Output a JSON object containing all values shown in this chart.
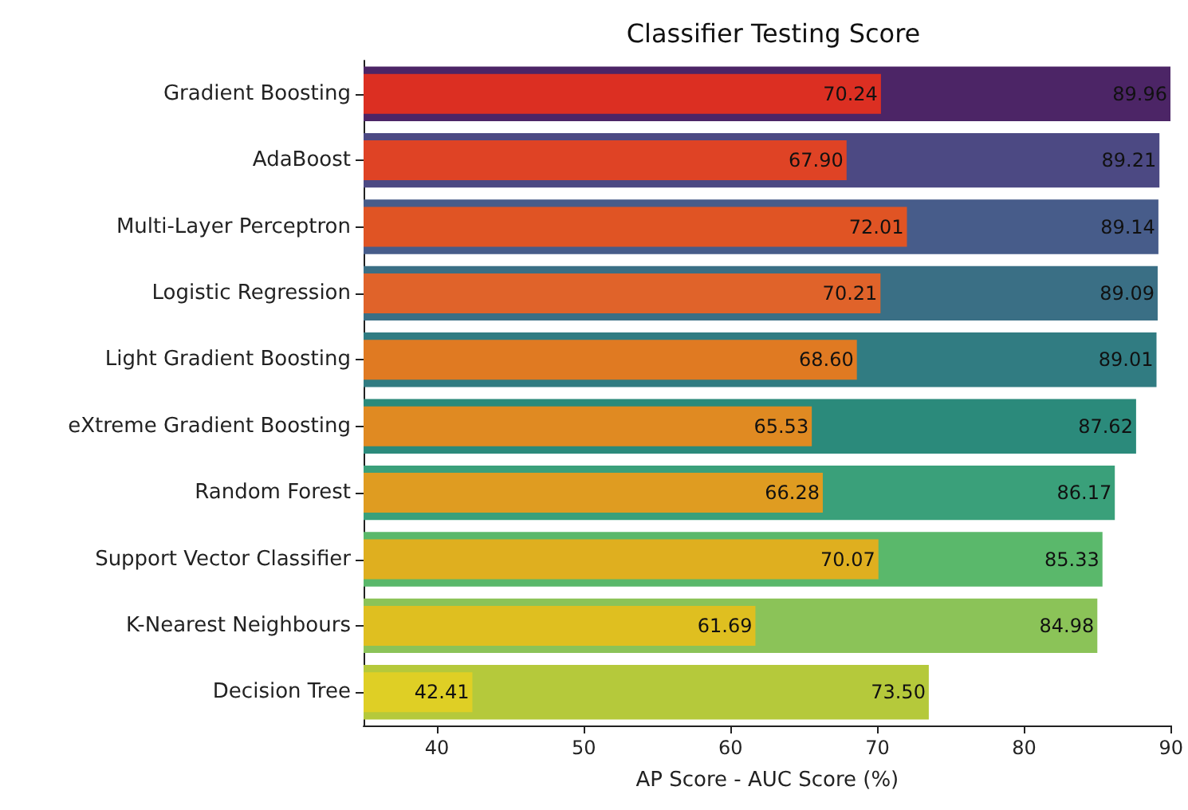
{
  "chart_data": {
    "type": "bar",
    "orientation": "horizontal",
    "title": "Classifier Testing Score",
    "xlabel": "AP Score - AUC Score (%)",
    "categories": [
      "Gradient Boosting",
      "AdaBoost",
      "Multi-Layer Perceptron",
      "Logistic Regression",
      "Light Gradient Boosting",
      "eXtreme Gradient Boosting",
      "Random Forest",
      "Support Vector Classifier",
      "K-Nearest Neighbours",
      "Decision Tree"
    ],
    "series": [
      {
        "values": [
          89.96,
          89.21,
          89.14,
          89.09,
          89.01,
          87.62,
          86.17,
          85.33,
          84.98,
          73.5
        ],
        "value_labels": [
          "89.96",
          "89.21",
          "89.14",
          "89.09",
          "89.01",
          "87.62",
          "86.17",
          "85.33",
          "84.98",
          "73.50"
        ],
        "colors": [
          "#4c2566",
          "#4c4983",
          "#475c8a",
          "#3a6f85",
          "#317c82",
          "#2b8a7b",
          "#3aa07a",
          "#5ab86b",
          "#8bc358",
          "#b5c93b"
        ]
      },
      {
        "values": [
          70.24,
          67.9,
          72.01,
          70.21,
          68.6,
          65.53,
          66.28,
          70.07,
          61.69,
          42.41
        ],
        "value_labels": [
          "70.24",
          "67.90",
          "72.01",
          "70.21",
          "68.60",
          "65.53",
          "66.28",
          "70.07",
          "61.69",
          "42.41"
        ],
        "colors": [
          "#dc2f22",
          "#df4325",
          "#e05424",
          "#e0632a",
          "#e07a22",
          "#e08a22",
          "#df9c21",
          "#dfaf1f",
          "#dfbf20",
          "#dfcf25"
        ]
      }
    ],
    "xlim": [
      35,
      90
    ],
    "xticks": [
      40,
      50,
      60,
      70,
      80,
      90
    ],
    "grid": false
  }
}
